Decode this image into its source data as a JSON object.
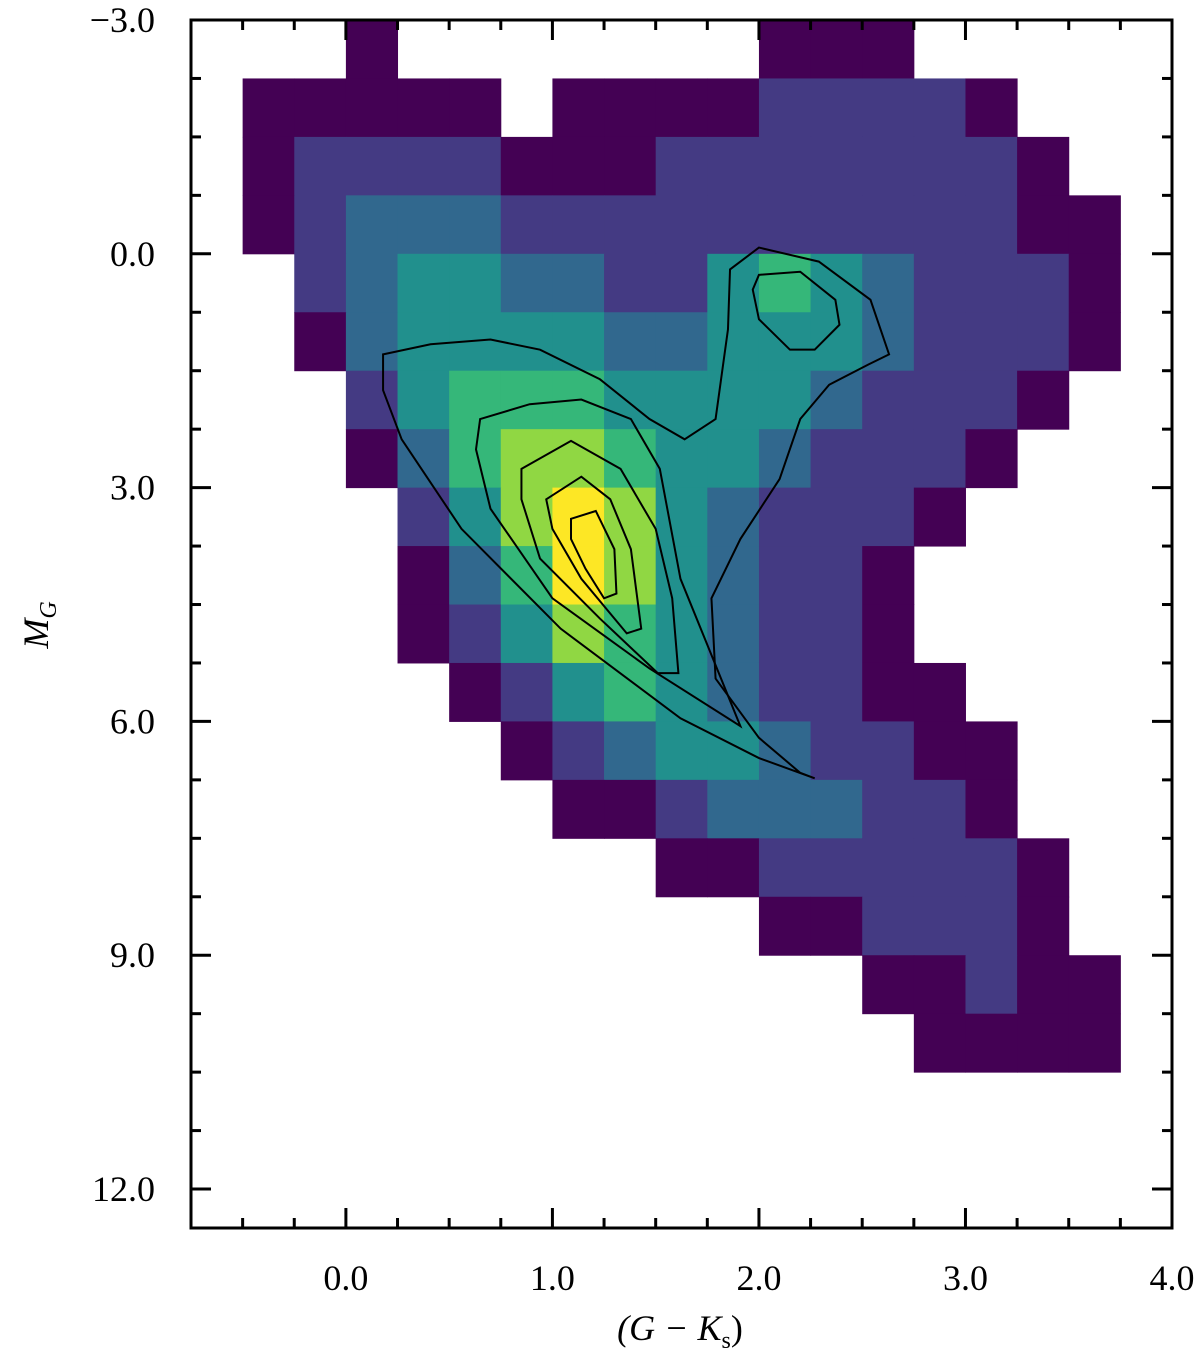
{
  "chart_data": {
    "type": "histogram2d",
    "xlabel": [
      "(G − K",
      "s",
      ")"
    ],
    "ylabel": [
      "M",
      "G"
    ],
    "xlim": [
      -0.75,
      4.0
    ],
    "ylim": [
      12.5,
      -3.0
    ],
    "xticks": [
      {
        "value": 0,
        "label": "0.0"
      },
      {
        "value": 1,
        "label": "1.0"
      },
      {
        "value": 2,
        "label": "2.0"
      },
      {
        "value": 3,
        "label": "3.0"
      },
      {
        "value": 4,
        "label": "4.0"
      }
    ],
    "yticks": [
      {
        "value": -3,
        "label": "−3.0"
      },
      {
        "value": 0,
        "label": "0.0"
      },
      {
        "value": 3,
        "label": "3.0"
      },
      {
        "value": 6,
        "label": "6.0"
      },
      {
        "value": 9,
        "label": "9.0"
      },
      {
        "value": 12,
        "label": "12.0"
      }
    ],
    "xminor": [
      -0.5,
      -0.25,
      0.25,
      0.5,
      0.75,
      1.25,
      1.5,
      1.75,
      2.25,
      2.5,
      2.75,
      3.25,
      3.5,
      3.75
    ],
    "yminor": [
      -2.25,
      -1.5,
      -0.75,
      0.75,
      1.5,
      2.25,
      3.75,
      4.5,
      5.25,
      6.75,
      7.5,
      8.25,
      9.75,
      10.5,
      11.25
    ],
    "colors": [
      "#440154",
      "#443a83",
      "#31688e",
      "#21908d",
      "#35b779",
      "#90d743",
      "#fde725"
    ],
    "xbins": [
      -0.75,
      -0.5,
      -0.25,
      0,
      0.25,
      0.5,
      0.75,
      1,
      1.25,
      1.5,
      1.75,
      2,
      2.25,
      2.5,
      2.75,
      3,
      3.25,
      3.5,
      3.75,
      4
    ],
    "ybins": [
      -3,
      -2.25,
      -1.5,
      -0.75,
      0,
      0.75,
      1.5,
      2.25,
      3,
      3.75,
      4.5,
      5.25,
      6,
      6.75,
      7.5,
      8.25,
      9,
      9.75,
      10.5
    ],
    "counts": [
      [
        null,
        null,
        null,
        1,
        null,
        null,
        null,
        null,
        null,
        null,
        null,
        1,
        1,
        1,
        null,
        null,
        null,
        null,
        null
      ],
      [
        null,
        1,
        1,
        1,
        1,
        1,
        null,
        1,
        1,
        1,
        1,
        2,
        2,
        2,
        2,
        1,
        null,
        null,
        null
      ],
      [
        null,
        1,
        2,
        2,
        2,
        2,
        1,
        1,
        1,
        2,
        2,
        2,
        2,
        2,
        2,
        2,
        1,
        null,
        null
      ],
      [
        null,
        1,
        2,
        3,
        3,
        3,
        2,
        2,
        2,
        2,
        2,
        2,
        2,
        2,
        2,
        2,
        1,
        1,
        null
      ],
      [
        null,
        null,
        2,
        3,
        4,
        4,
        3,
        3,
        2,
        2,
        4,
        5,
        4,
        3,
        2,
        2,
        2,
        1,
        null
      ],
      [
        null,
        null,
        1,
        3,
        4,
        4,
        4,
        4,
        3,
        3,
        4,
        4,
        4,
        3,
        2,
        2,
        2,
        1,
        null
      ],
      [
        null,
        null,
        null,
        2,
        4,
        5,
        5,
        5,
        4,
        4,
        4,
        4,
        3,
        2,
        2,
        2,
        1,
        null,
        null
      ],
      [
        null,
        null,
        null,
        1,
        3,
        5,
        6,
        6,
        5,
        4,
        4,
        3,
        2,
        2,
        2,
        1,
        null,
        null,
        null
      ],
      [
        null,
        null,
        null,
        null,
        2,
        4,
        6,
        7,
        6,
        4,
        3,
        2,
        2,
        2,
        1,
        null,
        null,
        null,
        null
      ],
      [
        null,
        null,
        null,
        null,
        1,
        3,
        5,
        7,
        6,
        4,
        3,
        2,
        2,
        1,
        null,
        null,
        null,
        null,
        null
      ],
      [
        null,
        null,
        null,
        null,
        1,
        2,
        4,
        6,
        5,
        4,
        3,
        2,
        2,
        1,
        null,
        null,
        null,
        null,
        null
      ],
      [
        null,
        null,
        null,
        null,
        null,
        1,
        2,
        4,
        5,
        4,
        3,
        2,
        2,
        1,
        1,
        null,
        null,
        null,
        null
      ],
      [
        null,
        null,
        null,
        null,
        null,
        null,
        1,
        2,
        3,
        4,
        4,
        3,
        2,
        2,
        1,
        1,
        null,
        null,
        null
      ],
      [
        null,
        null,
        null,
        null,
        null,
        null,
        null,
        1,
        1,
        2,
        3,
        3,
        3,
        2,
        2,
        1,
        null,
        null,
        null
      ],
      [
        null,
        null,
        null,
        null,
        null,
        null,
        null,
        null,
        null,
        1,
        1,
        2,
        2,
        2,
        2,
        2,
        1,
        null,
        null
      ],
      [
        null,
        null,
        null,
        null,
        null,
        null,
        null,
        null,
        null,
        null,
        null,
        1,
        1,
        2,
        2,
        2,
        1,
        null,
        null
      ],
      [
        null,
        null,
        null,
        null,
        null,
        null,
        null,
        null,
        null,
        null,
        null,
        null,
        null,
        1,
        1,
        2,
        1,
        1,
        null
      ],
      [
        null,
        null,
        null,
        null,
        null,
        null,
        null,
        null,
        null,
        null,
        null,
        null,
        null,
        null,
        1,
        1,
        1,
        1,
        null
      ]
    ],
    "contour_color": "#000000",
    "contours": [
      {
        "x": [
          0.18,
          0.41,
          0.7,
          0.94,
          1.23,
          1.47,
          1.64,
          1.79,
          1.85,
          1.86,
          2.0,
          2.29,
          2.54,
          2.63,
          2.53,
          2.34,
          2.2,
          2.1,
          1.91,
          1.77,
          1.79,
          2.0,
          2.2,
          2.27,
          2.0,
          1.62,
          1.04,
          0.56,
          0.27,
          0.18
        ],
        "y": [
          1.29,
          1.16,
          1.1,
          1.23,
          1.61,
          2.12,
          2.38,
          2.12,
          0.97,
          0.2,
          -0.08,
          0.1,
          0.59,
          1.29,
          1.42,
          1.68,
          2.12,
          2.89,
          3.66,
          4.42,
          5.45,
          6.21,
          6.66,
          6.73,
          6.47,
          5.96,
          4.81,
          3.53,
          2.38,
          1.75
        ]
      },
      {
        "x": [
          2.0,
          2.2,
          2.37,
          2.39,
          2.27,
          2.15,
          2.0,
          1.97
        ],
        "y": [
          0.27,
          0.23,
          0.59,
          0.91,
          1.23,
          1.23,
          0.84,
          0.46
        ]
      },
      {
        "x": [
          0.65,
          0.89,
          1.14,
          1.38,
          1.52,
          1.62,
          1.91,
          1.47,
          1.0,
          0.7,
          0.63
        ],
        "y": [
          2.12,
          1.93,
          1.87,
          2.12,
          2.76,
          4.17,
          6.06,
          5.32,
          4.42,
          3.27,
          2.51
        ]
      },
      {
        "x": [
          0.85,
          1.09,
          1.33,
          1.5,
          1.58,
          1.61,
          1.51,
          1.23,
          0.94,
          0.85
        ],
        "y": [
          2.76,
          2.4,
          2.76,
          3.53,
          4.42,
          5.38,
          5.38,
          4.68,
          3.91,
          3.15
        ]
      },
      {
        "x": [
          0.97,
          1.14,
          1.28,
          1.38,
          1.43,
          1.36,
          1.14,
          1.0
        ],
        "y": [
          3.15,
          2.86,
          3.15,
          3.79,
          4.81,
          4.87,
          4.17,
          3.53
        ]
      },
      {
        "x": [
          1.09,
          1.21,
          1.3,
          1.31,
          1.25,
          1.16,
          1.09
        ],
        "y": [
          3.4,
          3.3,
          3.79,
          4.36,
          4.42,
          4.04,
          3.66
        ]
      }
    ]
  }
}
